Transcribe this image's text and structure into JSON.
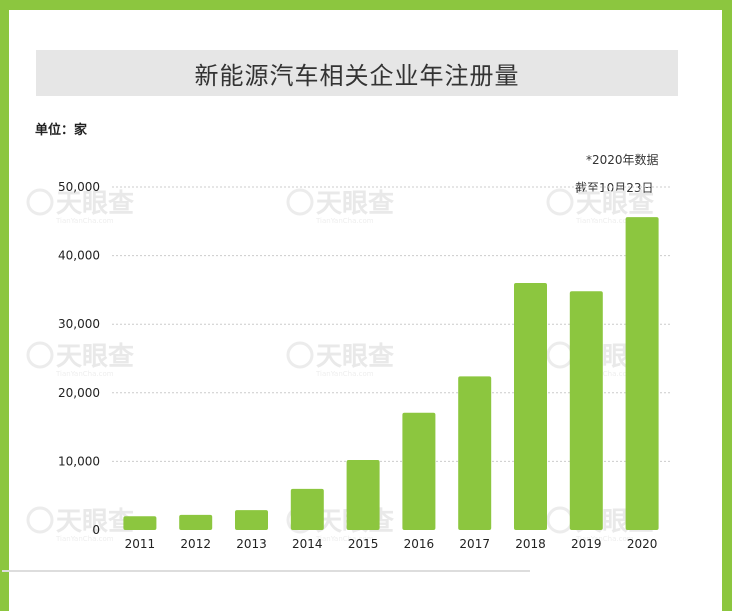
{
  "title": "新能源汽车相关企业年注册量",
  "unit_label": "单位：家",
  "note": {
    "line1": "*2020年数据",
    "line2": "截至10月23日"
  },
  "watermark": {
    "logo": "天眼查",
    "url": "TianYanCha.com"
  },
  "colors": {
    "bar": "#8cc63f",
    "border": "#8cc63f",
    "grid": "#cccccc",
    "title_band": "#e6e6e6"
  },
  "chart_data": {
    "type": "bar",
    "categories": [
      "2011",
      "2012",
      "2013",
      "2014",
      "2015",
      "2016",
      "2017",
      "2018",
      "2019",
      "2020"
    ],
    "values": [
      2000,
      2200,
      2900,
      6000,
      10200,
      17100,
      22400,
      36000,
      34800,
      45600
    ],
    "title": "新能源汽车相关企业年注册量",
    "ylabel": "单位：家",
    "ylim": [
      0,
      50000
    ],
    "yticks": [
      0,
      10000,
      20000,
      30000,
      40000,
      50000
    ],
    "ytick_labels": [
      "0",
      "10,000",
      "20,000",
      "30,000",
      "40,000",
      "50,000"
    ],
    "grid": true
  }
}
